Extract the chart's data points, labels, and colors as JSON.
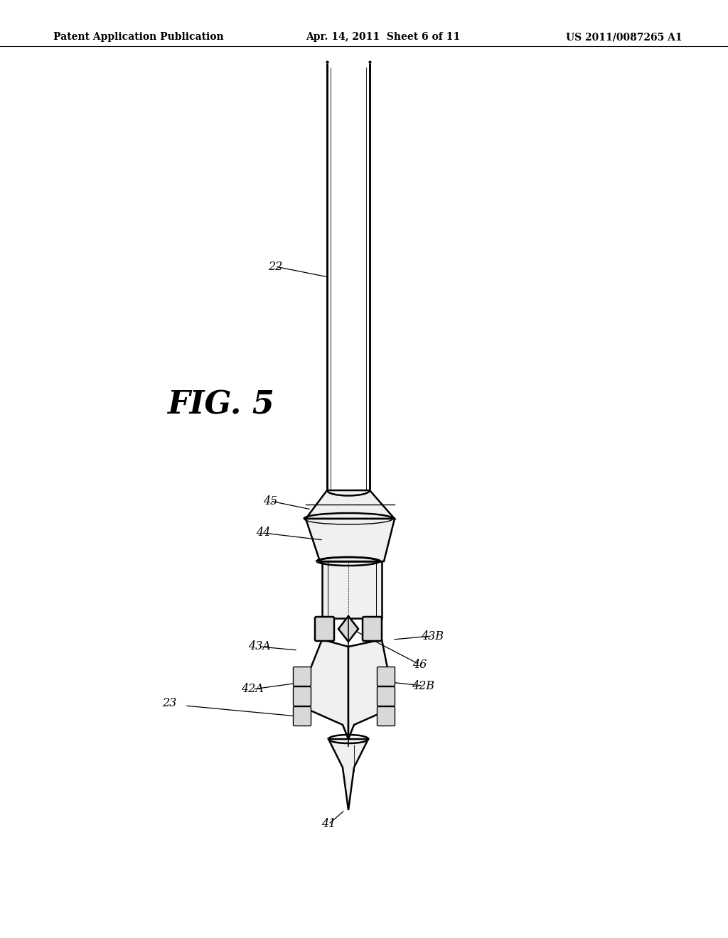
{
  "bg_color": "#ffffff",
  "header_left": "Patent Application Publication",
  "header_center": "Apr. 14, 2011  Sheet 6 of 11",
  "header_right": "US 2011/0087265 A1",
  "fig_label": "FIG. 5",
  "line_color": "#000000",
  "fill_light": "#f0f0f0",
  "fill_mid": "#d8d8d8",
  "fill_dark": "#b0b0b0"
}
